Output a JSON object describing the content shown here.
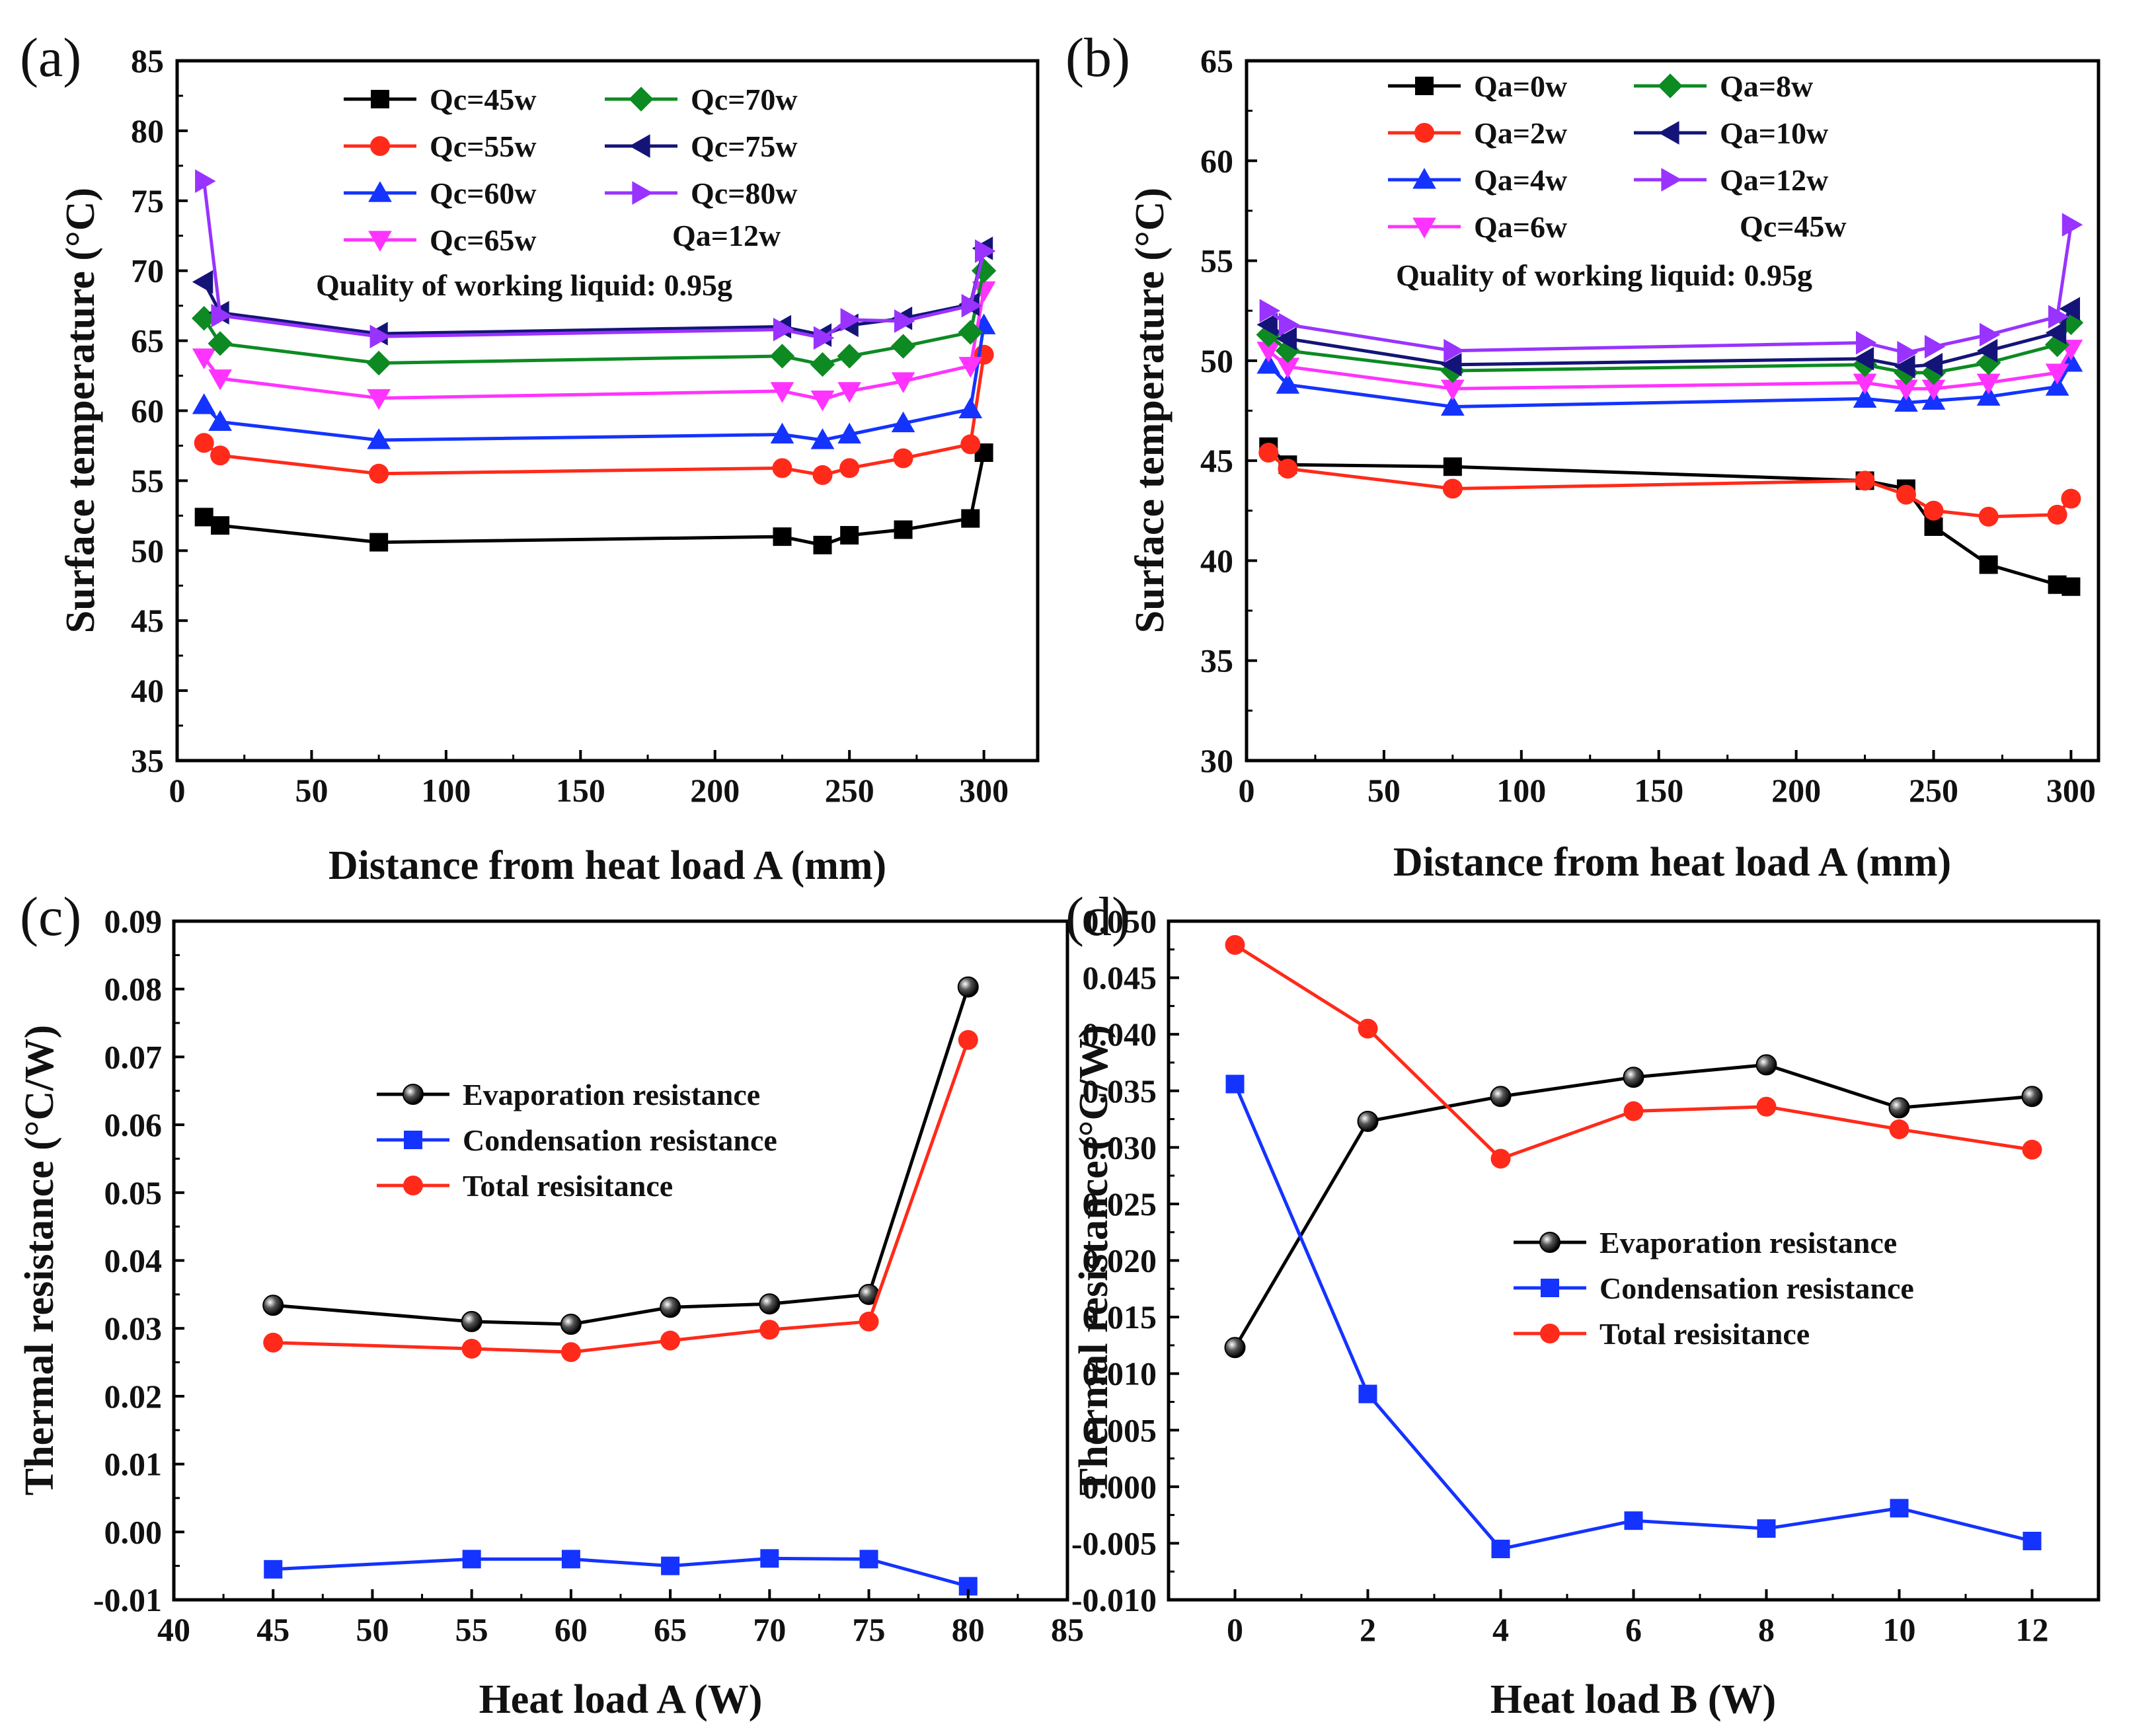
{
  "chart_data": [
    {
      "panel": "(a)",
      "type": "line",
      "xlabel": "Distance from heat load A (mm)",
      "ylabel": "Surface temperature  (°C)",
      "xlim": [
        0,
        320
      ],
      "ylim": [
        35,
        85
      ],
      "xticks": [
        0,
        50,
        100,
        150,
        200,
        250,
        300
      ],
      "yticks": [
        35,
        40,
        45,
        50,
        55,
        60,
        65,
        70,
        75,
        80,
        85
      ],
      "legend_position": "top",
      "legend_columns": 2,
      "annotations": [
        "Qa=12w",
        "Quality of working liquid: 0.95g"
      ],
      "x": [
        10,
        16,
        75,
        225,
        240,
        250,
        270,
        295,
        300
      ],
      "series": [
        {
          "name": "Qc=45w",
          "color": "#000000",
          "marker": "square",
          "values": [
            52.4,
            51.8,
            50.6,
            51.0,
            50.4,
            51.1,
            51.5,
            52.3,
            57.0
          ]
        },
        {
          "name": "Qc=55w",
          "color": "#ff2a1a",
          "marker": "circle",
          "values": [
            57.7,
            56.8,
            55.5,
            55.9,
            55.4,
            55.9,
            56.6,
            57.6,
            64.0
          ]
        },
        {
          "name": "Qc=60w",
          "color": "#1433ff",
          "marker": "triangle-up",
          "values": [
            60.4,
            59.2,
            57.9,
            58.3,
            57.9,
            58.3,
            59.1,
            60.1,
            66.1
          ]
        },
        {
          "name": "Qc=65w",
          "color": "#ff33ff",
          "marker": "triangle-down",
          "values": [
            63.8,
            62.3,
            60.9,
            61.4,
            60.8,
            61.4,
            62.1,
            63.2,
            68.6
          ]
        },
        {
          "name": "Qc=70w",
          "color": "#0d8a22",
          "marker": "diamond",
          "values": [
            66.6,
            64.8,
            63.4,
            63.9,
            63.3,
            63.9,
            64.6,
            65.6,
            70.0
          ]
        },
        {
          "name": "Qc=75w",
          "color": "#141478",
          "marker": "triangle-left",
          "values": [
            69.2,
            67.0,
            65.5,
            66.0,
            65.4,
            66.1,
            66.6,
            67.6,
            71.6
          ]
        },
        {
          "name": "Qc=80w",
          "color": "#9933ff",
          "marker": "triangle-right",
          "values": [
            76.4,
            66.8,
            65.3,
            65.8,
            65.2,
            66.5,
            66.4,
            67.5,
            71.4
          ]
        }
      ]
    },
    {
      "panel": "(b)",
      "type": "line",
      "xlabel": "Distance from heat load A (mm)",
      "ylabel": "Surface temperature  (°C)",
      "xlim": [
        0,
        310
      ],
      "ylim": [
        30,
        65
      ],
      "xticks": [
        0,
        50,
        100,
        150,
        200,
        250,
        300
      ],
      "yticks": [
        30,
        35,
        40,
        45,
        50,
        55,
        60,
        65
      ],
      "legend_position": "top",
      "legend_columns": 2,
      "annotations": [
        "Qc=45w",
        "Quality of working liquid: 0.95g"
      ],
      "x": [
        8,
        15,
        75,
        225,
        240,
        250,
        270,
        295,
        300
      ],
      "series": [
        {
          "name": "Qa=0w",
          "color": "#000000",
          "marker": "square",
          "values": [
            45.7,
            44.8,
            44.7,
            44.0,
            43.6,
            41.7,
            39.8,
            38.8,
            38.7
          ]
        },
        {
          "name": "Qa=2w",
          "color": "#ff2a1a",
          "marker": "circle",
          "values": [
            45.4,
            44.6,
            43.6,
            44.0,
            43.3,
            42.5,
            42.2,
            42.3,
            43.1
          ]
        },
        {
          "name": "Qa=4w",
          "color": "#1433ff",
          "marker": "triangle-up",
          "values": [
            49.8,
            48.8,
            47.7,
            48.1,
            47.9,
            48.0,
            48.2,
            48.7,
            49.9
          ]
        },
        {
          "name": "Qa=6w",
          "color": "#ff33ff",
          "marker": "triangle-down",
          "values": [
            50.5,
            49.7,
            48.6,
            48.9,
            48.6,
            48.6,
            48.9,
            49.4,
            50.6
          ]
        },
        {
          "name": "Qa=8w",
          "color": "#0d8a22",
          "marker": "diamond",
          "values": [
            51.3,
            50.5,
            49.5,
            49.8,
            49.4,
            49.4,
            49.9,
            50.8,
            51.9
          ]
        },
        {
          "name": "Qa=10w",
          "color": "#141478",
          "marker": "triangle-left",
          "values": [
            51.8,
            51.1,
            49.8,
            50.1,
            49.7,
            49.8,
            50.5,
            51.4,
            52.6
          ]
        },
        {
          "name": "Qa=12w",
          "color": "#9933ff",
          "marker": "triangle-right",
          "values": [
            52.5,
            51.8,
            50.5,
            50.9,
            50.4,
            50.7,
            51.3,
            52.2,
            56.8
          ]
        }
      ]
    },
    {
      "panel": "(c)",
      "type": "line",
      "xlabel": "Heat load A (W)",
      "ylabel": "Thermal resistance (°C/W)",
      "xlim": [
        40,
        85
      ],
      "ylim": [
        -0.01,
        0.09
      ],
      "xticks": [
        40,
        45,
        50,
        55,
        60,
        65,
        70,
        75,
        80,
        85
      ],
      "yticks": [
        -0.01,
        0.0,
        0.01,
        0.02,
        0.03,
        0.04,
        0.05,
        0.06,
        0.07,
        0.08,
        0.09
      ],
      "ytick_labels": [
        "-0.01",
        "0.00",
        "0.01",
        "0.02",
        "0.03",
        "0.04",
        "0.05",
        "0.06",
        "0.07",
        "0.08",
        "0.09"
      ],
      "legend_position": "center",
      "x": [
        45,
        55,
        60,
        65,
        70,
        75,
        80
      ],
      "series": [
        {
          "name": "Evaporation resistance",
          "color": "#000000",
          "marker": "sphere",
          "values": [
            0.0334,
            0.031,
            0.0306,
            0.0331,
            0.0336,
            0.035,
            0.0803
          ]
        },
        {
          "name": "Condensation resistance",
          "color": "#1433ff",
          "marker": "square",
          "values": [
            -0.0055,
            -0.004,
            -0.004,
            -0.005,
            -0.0039,
            -0.004,
            -0.008
          ]
        },
        {
          "name": "Total resisitance",
          "color": "#ff2a1a",
          "marker": "circle",
          "values": [
            0.0279,
            0.027,
            0.0265,
            0.0282,
            0.0298,
            0.031,
            0.0725
          ]
        }
      ]
    },
    {
      "panel": "(d)",
      "type": "line",
      "xlabel": "Heat load B (W)",
      "ylabel": "Thermal resistance (°C/W)",
      "xlim": [
        -1,
        13
      ],
      "ylim": [
        -0.01,
        0.05
      ],
      "xticks": [
        0,
        2,
        4,
        6,
        8,
        10,
        12
      ],
      "yticks": [
        -0.01,
        -0.005,
        0.0,
        0.005,
        0.01,
        0.015,
        0.02,
        0.025,
        0.03,
        0.035,
        0.04,
        0.045,
        0.05
      ],
      "ytick_labels": [
        "-0.010",
        "-0.005",
        "0.000",
        "0.005",
        "0.010",
        "0.015",
        "0.020",
        "0.025",
        "0.030",
        "0.035",
        "0.040",
        "0.045",
        "0.050"
      ],
      "legend_position": "center-right",
      "x": [
        0,
        2,
        4,
        6,
        8,
        10,
        12
      ],
      "series": [
        {
          "name": "Evaporation resistance",
          "color": "#000000",
          "marker": "sphere",
          "values": [
            0.0123,
            0.0323,
            0.0345,
            0.0362,
            0.0373,
            0.0335,
            0.0345
          ]
        },
        {
          "name": "Condensation resistance",
          "color": "#1433ff",
          "marker": "square",
          "values": [
            0.0356,
            0.0082,
            -0.0055,
            -0.003,
            -0.0037,
            -0.0019,
            -0.0048
          ]
        },
        {
          "name": "Total resisitance",
          "color": "#ff2a1a",
          "marker": "circle",
          "values": [
            0.0479,
            0.0405,
            0.029,
            0.0332,
            0.0336,
            0.0316,
            0.0298
          ]
        }
      ]
    }
  ]
}
